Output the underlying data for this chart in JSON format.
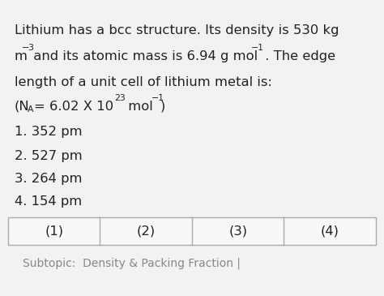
{
  "bg_color": "#f2f2f2",
  "text_color": "#222222",
  "border_color": "#aaaaaa",
  "subtopic_color": "#888888",
  "table_labels": [
    "(1)",
    "(2)",
    "(3)",
    "(4)"
  ],
  "subtopic": "Subtopic:  Density & Packing Fraction |",
  "main_fontsize": 11.8,
  "option_fontsize": 11.8,
  "table_fontsize": 11.8,
  "subtopic_fontsize": 10.0,
  "sup_fontsize": 7.8,
  "sub_fontsize": 7.8
}
